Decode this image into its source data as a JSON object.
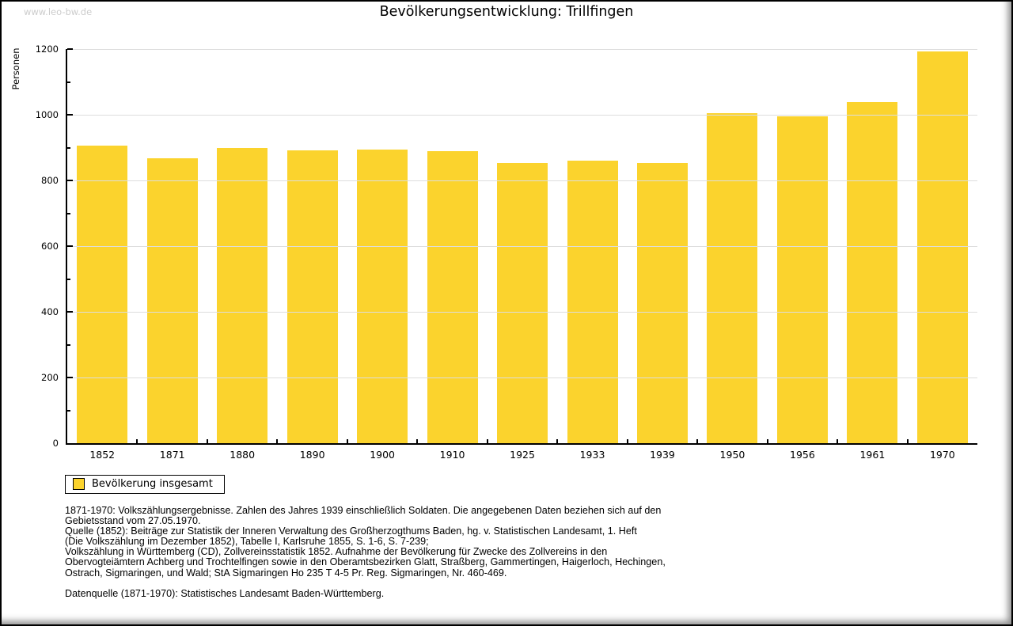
{
  "watermark": "www.leo-bw.de",
  "title": "Bevölkerungsentwicklung: Trillfingen",
  "chart_data": {
    "type": "bar",
    "title": "Bevölkerungsentwicklung: Trillfingen",
    "categories": [
      "1852",
      "1871",
      "1880",
      "1890",
      "1900",
      "1910",
      "1925",
      "1933",
      "1939",
      "1950",
      "1956",
      "1961",
      "1970"
    ],
    "values": [
      905,
      867,
      898,
      891,
      893,
      890,
      853,
      860,
      853,
      1004,
      995,
      1039,
      1194
    ],
    "series_name": "Bevölkerung insgesamt",
    "xlabel": "",
    "ylabel": "Personen",
    "ylim": [
      0,
      1200
    ],
    "yticks_major": [
      0,
      200,
      400,
      600,
      800,
      1000,
      1200
    ],
    "yticks_minor": [
      100,
      300,
      500,
      700,
      900,
      1100
    ],
    "grid": "horizontal-major",
    "gridline_color": "#dddddd",
    "bar_color": "#fbd32d",
    "legend_position": "bottom-left"
  },
  "legend": {
    "label": "Bevölkerung insgesamt",
    "swatch_color": "#fbd32d"
  },
  "notes": {
    "lines": [
      "1871-1970: Volkszählungsergebnisse. Zahlen des Jahres 1939 einschließlich Soldaten. Die angegebenen Daten beziehen sich auf den",
      "Gebietsstand vom 27.05.1970.",
      "Quelle (1852): Beiträge zur Statistik der Inneren Verwaltung des Großherzogthums Baden, hg. v. Statistischen Landesamt, 1. Heft",
      "(Die Volkszählung im Dezember 1852), Tabelle I, Karlsruhe 1855, S. 1-6, S. 7-239;",
      "Volkszählung in Württemberg (CD), Zollvereinsstatistik 1852. Aufnahme der Bevölkerung für Zwecke des Zollvereins in den",
      "Obervogteiämtern Achberg und Trochtelfingen sowie in den Oberamtsbezirken Glatt, Straßberg, Gammertingen, Haigerloch, Hechingen,",
      "Ostrach, Sigmaringen, und Wald; StA Sigmaringen Ho 235 T 4-5 Pr. Reg. Sigmaringen, Nr. 460-469."
    ],
    "datasource": "Datenquelle (1871-1970): Statistisches Landesamt Baden-Württemberg."
  }
}
